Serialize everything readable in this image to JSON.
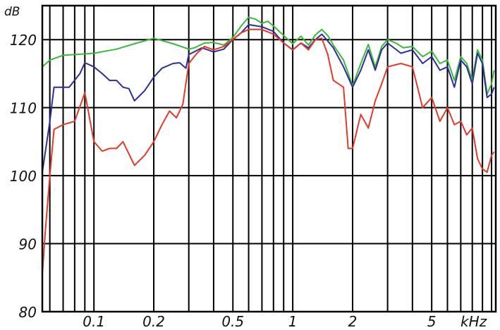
{
  "chart_data": {
    "type": "line",
    "title": "",
    "ylabel": "dB",
    "xlabel": "kHz",
    "x_scale": "log",
    "xlim": [
      0.055,
      10.5
    ],
    "ylim": [
      80,
      125
    ],
    "grid": true,
    "legend": "none",
    "y_ticks": [
      {
        "value": 80,
        "label": "80"
      },
      {
        "value": 90,
        "label": "90"
      },
      {
        "value": 100,
        "label": "100"
      },
      {
        "value": 110,
        "label": "110"
      },
      {
        "value": 120,
        "label": "120"
      }
    ],
    "x_tick_labels": [
      {
        "value": 0.1,
        "label": "0.1"
      },
      {
        "value": 0.2,
        "label": "0.2"
      },
      {
        "value": 0.5,
        "label": "0.5"
      },
      {
        "value": 1,
        "label": "1"
      },
      {
        "value": 2,
        "label": "2"
      },
      {
        "value": 5,
        "label": "5"
      }
    ],
    "x_gridlines": [
      0.06,
      0.07,
      0.08,
      0.09,
      0.1,
      0.2,
      0.3,
      0.4,
      0.5,
      0.6,
      0.7,
      0.8,
      0.9,
      1,
      2,
      3,
      4,
      5,
      6,
      7,
      8,
      9,
      10
    ],
    "series": [
      {
        "color": "#3cb93c",
        "points": [
          [
            0.055,
            116.0
          ],
          [
            0.06,
            117.0
          ],
          [
            0.07,
            117.7
          ],
          [
            0.08,
            117.8
          ],
          [
            0.1,
            118.0
          ],
          [
            0.13,
            118.6
          ],
          [
            0.16,
            119.4
          ],
          [
            0.2,
            120.2
          ],
          [
            0.25,
            119.4
          ],
          [
            0.3,
            118.6
          ],
          [
            0.32,
            118.8
          ],
          [
            0.36,
            119.5
          ],
          [
            0.4,
            119.6
          ],
          [
            0.45,
            119.2
          ],
          [
            0.5,
            120.3
          ],
          [
            0.55,
            122.0
          ],
          [
            0.6,
            123.3
          ],
          [
            0.65,
            123.0
          ],
          [
            0.7,
            122.4
          ],
          [
            0.75,
            122.7
          ],
          [
            0.8,
            122.0
          ],
          [
            0.9,
            120.6
          ],
          [
            1.0,
            119.4
          ],
          [
            1.1,
            120.5
          ],
          [
            1.2,
            119.2
          ],
          [
            1.3,
            120.7
          ],
          [
            1.4,
            121.5
          ],
          [
            1.5,
            120.6
          ],
          [
            1.6,
            119.2
          ],
          [
            1.8,
            117.0
          ],
          [
            2.0,
            113.2
          ],
          [
            2.2,
            116.5
          ],
          [
            2.4,
            119.3
          ],
          [
            2.6,
            116.0
          ],
          [
            2.8,
            119.0
          ],
          [
            3.0,
            120.0
          ],
          [
            3.3,
            119.5
          ],
          [
            3.6,
            118.8
          ],
          [
            4.0,
            119.0
          ],
          [
            4.5,
            117.5
          ],
          [
            5.0,
            118.3
          ],
          [
            5.5,
            116.5
          ],
          [
            6.0,
            117.0
          ],
          [
            6.5,
            114.0
          ],
          [
            7.0,
            117.5
          ],
          [
            7.5,
            116.5
          ],
          [
            8.0,
            114.0
          ],
          [
            8.5,
            118.5
          ],
          [
            9.0,
            117.0
          ],
          [
            9.5,
            112.0
          ],
          [
            10.0,
            113.5
          ],
          [
            10.3,
            115.5
          ]
        ]
      },
      {
        "color": "#2e2e9a",
        "points": [
          [
            0.055,
            100.5
          ],
          [
            0.06,
            108.0
          ],
          [
            0.063,
            113.0
          ],
          [
            0.07,
            113.0
          ],
          [
            0.075,
            113.0
          ],
          [
            0.085,
            115.0
          ],
          [
            0.09,
            116.6
          ],
          [
            0.1,
            116.0
          ],
          [
            0.11,
            115.0
          ],
          [
            0.12,
            114.0
          ],
          [
            0.13,
            114.0
          ],
          [
            0.14,
            113.0
          ],
          [
            0.15,
            112.8
          ],
          [
            0.16,
            111.0
          ],
          [
            0.18,
            112.5
          ],
          [
            0.2,
            114.5
          ],
          [
            0.22,
            115.8
          ],
          [
            0.25,
            116.5
          ],
          [
            0.27,
            116.6
          ],
          [
            0.29,
            115.8
          ],
          [
            0.3,
            117.8
          ],
          [
            0.35,
            118.8
          ],
          [
            0.4,
            118.2
          ],
          [
            0.45,
            118.6
          ],
          [
            0.5,
            120.0
          ],
          [
            0.55,
            121.0
          ],
          [
            0.6,
            122.2
          ],
          [
            0.7,
            121.9
          ],
          [
            0.8,
            121.2
          ],
          [
            0.9,
            119.5
          ],
          [
            1.0,
            118.5
          ],
          [
            1.1,
            119.5
          ],
          [
            1.2,
            118.8
          ],
          [
            1.3,
            120.0
          ],
          [
            1.4,
            120.8
          ],
          [
            1.5,
            119.8
          ],
          [
            1.6,
            118.8
          ],
          [
            1.8,
            116.0
          ],
          [
            2.0,
            113.0
          ],
          [
            2.2,
            115.5
          ],
          [
            2.4,
            118.5
          ],
          [
            2.6,
            115.5
          ],
          [
            2.8,
            118.5
          ],
          [
            3.0,
            119.5
          ],
          [
            3.5,
            118.0
          ],
          [
            4.0,
            118.5
          ],
          [
            4.5,
            116.5
          ],
          [
            5.0,
            117.5
          ],
          [
            5.5,
            115.5
          ],
          [
            6.0,
            116.0
          ],
          [
            6.5,
            113.0
          ],
          [
            7.0,
            117.0
          ],
          [
            7.5,
            116.0
          ],
          [
            8.0,
            113.5
          ],
          [
            8.5,
            118.0
          ],
          [
            9.0,
            116.5
          ],
          [
            9.5,
            111.5
          ],
          [
            10.0,
            112.0
          ],
          [
            10.3,
            113.0
          ]
        ]
      },
      {
        "color": "#e23a2a",
        "points": [
          [
            0.055,
            85.5
          ],
          [
            0.057,
            92.0
          ],
          [
            0.06,
            100.0
          ],
          [
            0.063,
            106.8
          ],
          [
            0.07,
            107.5
          ],
          [
            0.08,
            108.0
          ],
          [
            0.09,
            112.2
          ],
          [
            0.1,
            105.0
          ],
          [
            0.11,
            103.6
          ],
          [
            0.12,
            104.0
          ],
          [
            0.13,
            104.0
          ],
          [
            0.14,
            105.0
          ],
          [
            0.16,
            101.5
          ],
          [
            0.18,
            103.0
          ],
          [
            0.2,
            105.0
          ],
          [
            0.22,
            107.5
          ],
          [
            0.24,
            109.5
          ],
          [
            0.26,
            108.5
          ],
          [
            0.28,
            110.5
          ],
          [
            0.3,
            116.5
          ],
          [
            0.33,
            118.0
          ],
          [
            0.36,
            119.0
          ],
          [
            0.4,
            118.5
          ],
          [
            0.45,
            119.0
          ],
          [
            0.5,
            120.0
          ],
          [
            0.55,
            121.0
          ],
          [
            0.6,
            121.5
          ],
          [
            0.7,
            121.5
          ],
          [
            0.8,
            120.8
          ],
          [
            0.9,
            119.5
          ],
          [
            1.0,
            118.5
          ],
          [
            1.1,
            119.5
          ],
          [
            1.2,
            118.5
          ],
          [
            1.3,
            120.0
          ],
          [
            1.4,
            120.2
          ],
          [
            1.5,
            117.8
          ],
          [
            1.6,
            114.0
          ],
          [
            1.8,
            113.0
          ],
          [
            1.9,
            104.0
          ],
          [
            2.0,
            104.0
          ],
          [
            2.2,
            109.0
          ],
          [
            2.4,
            107.0
          ],
          [
            2.6,
            111.0
          ],
          [
            2.8,
            113.5
          ],
          [
            3.0,
            116.0
          ],
          [
            3.5,
            116.5
          ],
          [
            4.0,
            116.0
          ],
          [
            4.5,
            110.0
          ],
          [
            5.0,
            111.5
          ],
          [
            5.5,
            108.0
          ],
          [
            6.0,
            110.0
          ],
          [
            6.5,
            107.5
          ],
          [
            7.0,
            108.0
          ],
          [
            7.5,
            106.0
          ],
          [
            8.0,
            107.0
          ],
          [
            8.5,
            102.5
          ],
          [
            9.0,
            101.0
          ],
          [
            9.5,
            100.5
          ],
          [
            10.0,
            103.0
          ],
          [
            10.3,
            103.5
          ]
        ]
      }
    ]
  }
}
